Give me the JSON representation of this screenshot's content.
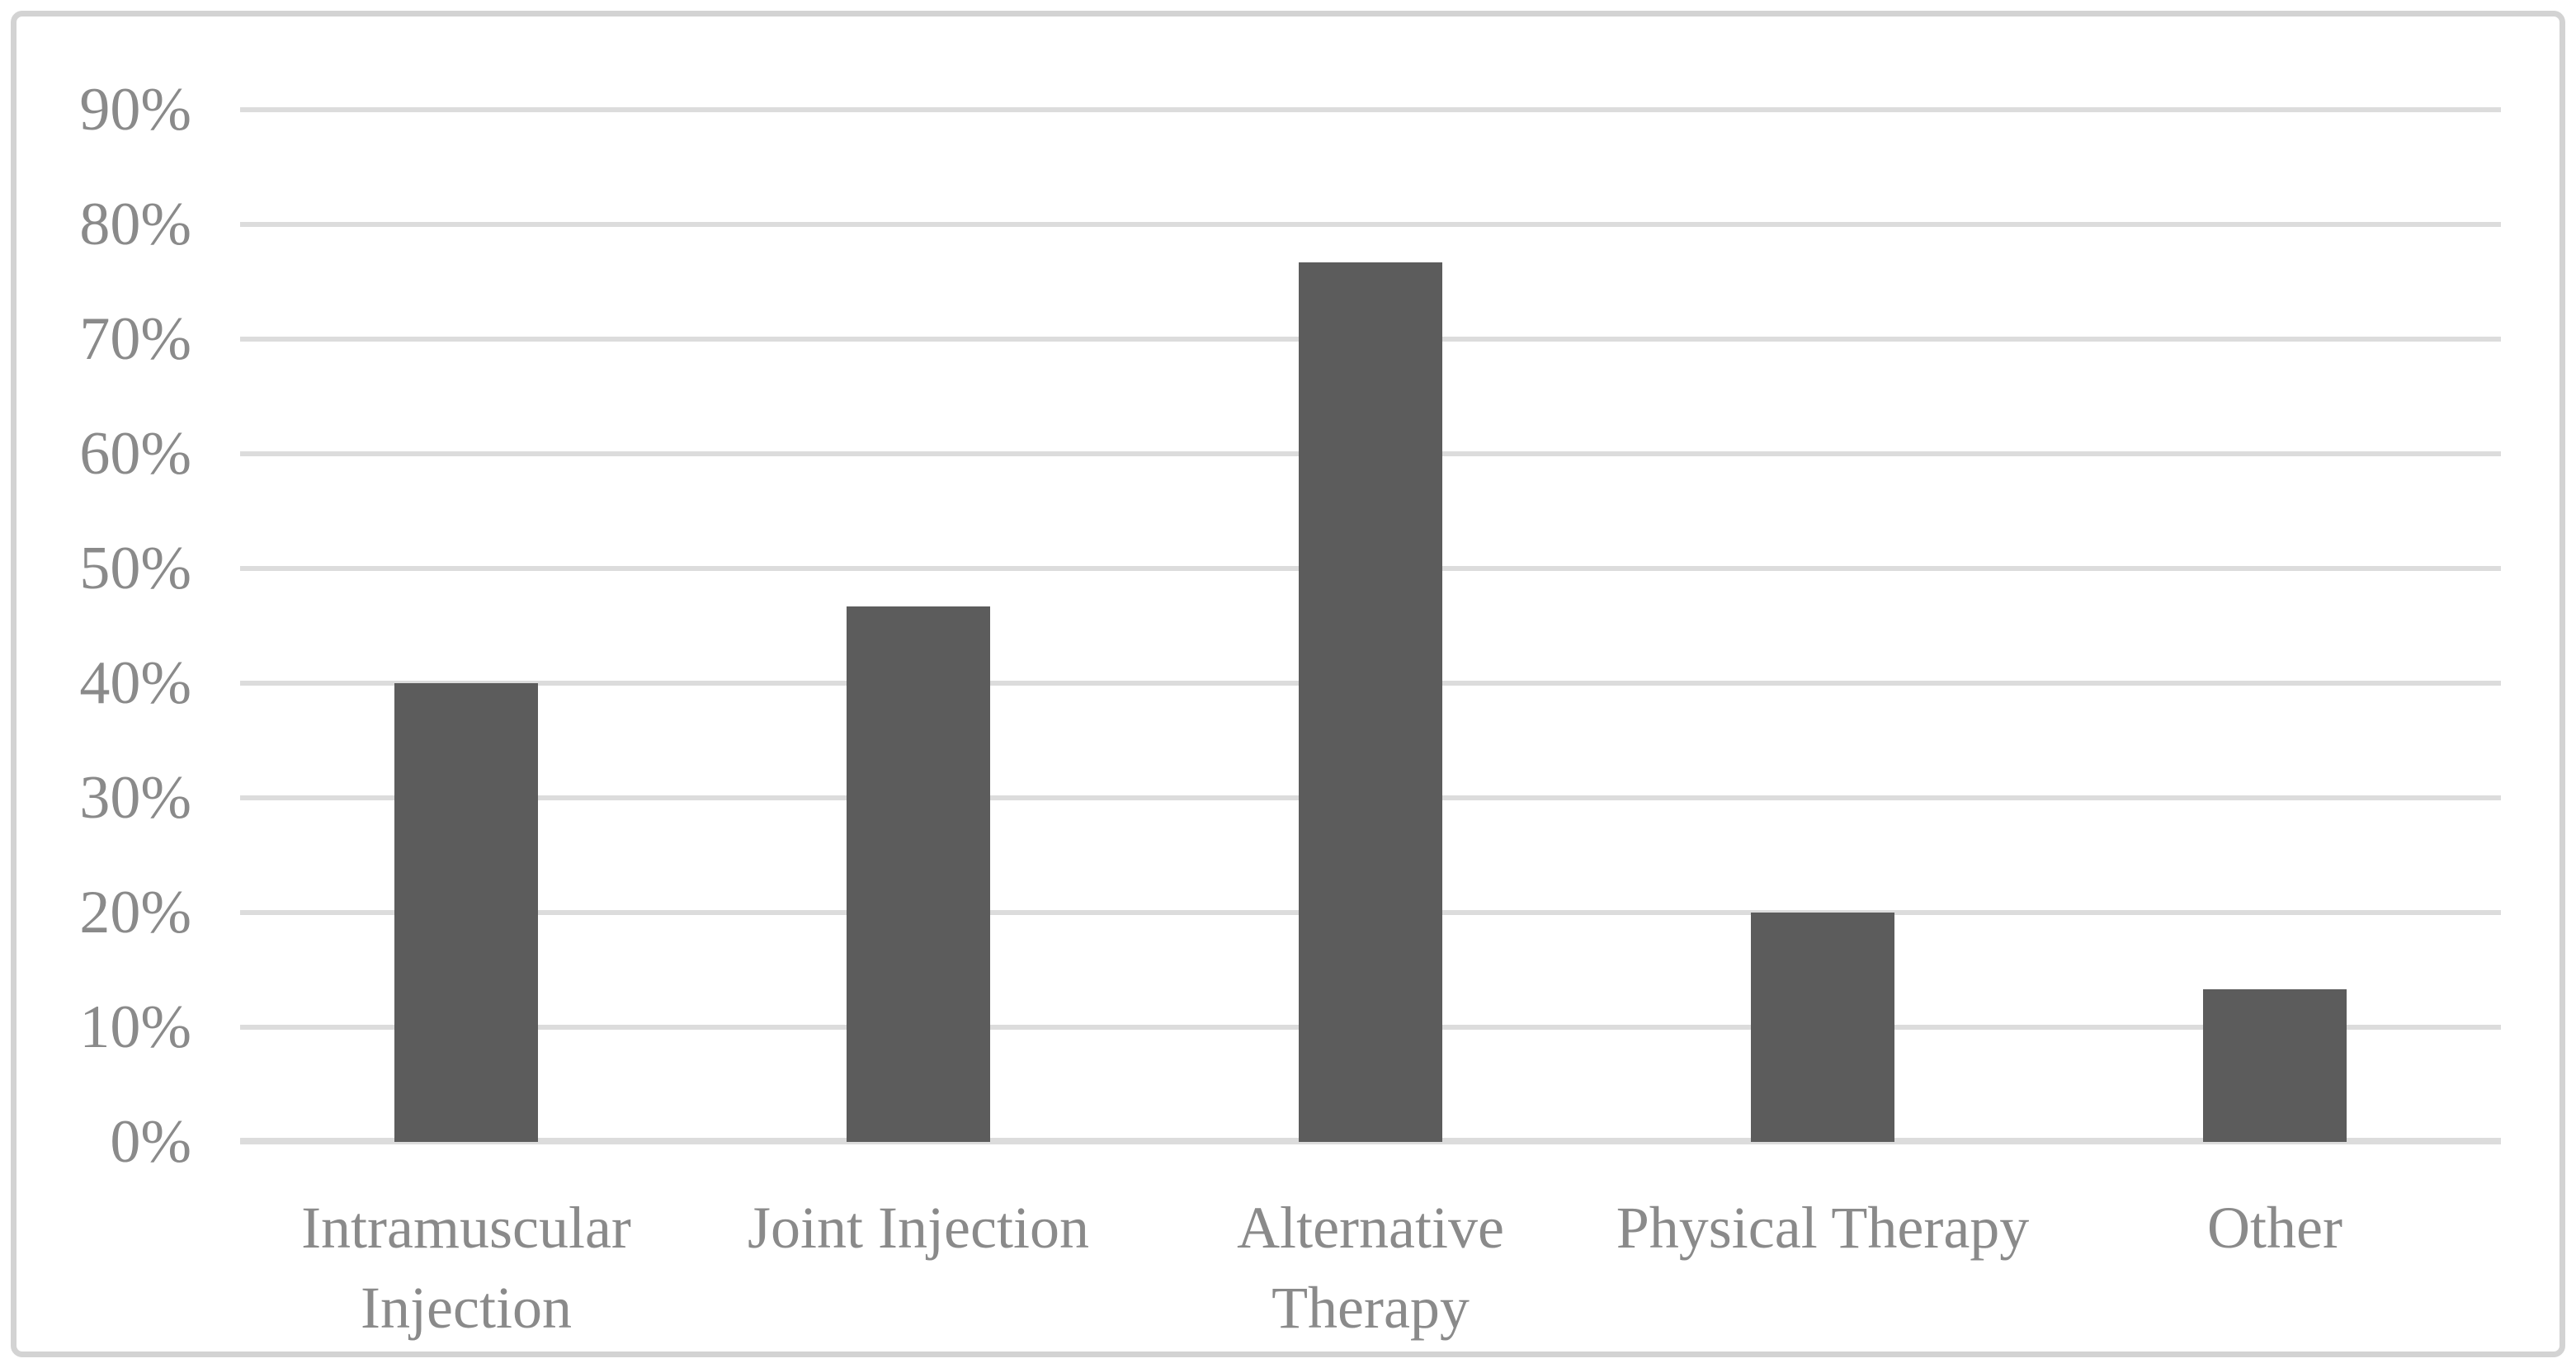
{
  "chart_data": {
    "type": "bar",
    "categories": [
      "Intramuscular Injection",
      "Joint Injection",
      "Alternative Therapy",
      "Physical Therapy",
      "Other"
    ],
    "values": [
      40,
      46.7,
      76.7,
      20,
      13.3
    ],
    "title": "",
    "xlabel": "",
    "ylabel": "",
    "ylim": [
      0,
      90
    ],
    "y_tick_step": 10,
    "y_tick_labels": [
      "0%",
      "10%",
      "20%",
      "30%",
      "40%",
      "50%",
      "60%",
      "70%",
      "80%",
      "90%"
    ],
    "grid": true,
    "legend": false,
    "colors": {
      "bar": "#5c5c5c",
      "gridline": "#dcdcdc",
      "axis_baseline": "#dcdcdc",
      "label_text": "#8a8a8a",
      "frame_border": "#d3d3d3",
      "background": "#ffffff"
    }
  }
}
